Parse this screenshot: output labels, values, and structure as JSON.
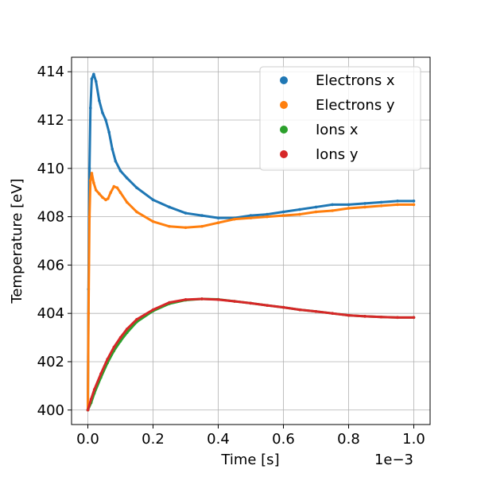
{
  "chart_data": {
    "type": "scatter",
    "xlabel": "Time [s]",
    "ylabel": "Temperature [eV]",
    "x_offset_label": "1e−3",
    "xlim": [
      -0.05,
      1.05
    ],
    "ylim": [
      399.4,
      414.6
    ],
    "x_ticks": [
      0.0,
      0.2,
      0.4,
      0.6,
      0.8,
      1.0
    ],
    "x_tick_labels": [
      "0.0",
      "0.2",
      "0.4",
      "0.6",
      "0.8",
      "1.0"
    ],
    "y_ticks": [
      400,
      402,
      404,
      406,
      408,
      410,
      412,
      414
    ],
    "y_tick_labels": [
      "400",
      "402",
      "404",
      "406",
      "408",
      "410",
      "412",
      "414"
    ],
    "grid": true,
    "legend_position": "top-right",
    "series": [
      {
        "name": "Electrons x",
        "color": "#1f77b4",
        "points": [
          [
            0,
            400
          ],
          [
            0.002,
            405
          ],
          [
            0.005,
            410
          ],
          [
            0.008,
            412.5
          ],
          [
            0.012,
            413.7
          ],
          [
            0.018,
            413.9
          ],
          [
            0.025,
            413.6
          ],
          [
            0.035,
            412.8
          ],
          [
            0.045,
            412.3
          ],
          [
            0.055,
            412
          ],
          [
            0.065,
            411.5
          ],
          [
            0.075,
            410.8
          ],
          [
            0.085,
            410.3
          ],
          [
            0.1,
            409.9
          ],
          [
            0.12,
            409.6
          ],
          [
            0.15,
            409.2
          ],
          [
            0.2,
            408.7
          ],
          [
            0.25,
            408.4
          ],
          [
            0.3,
            408.15
          ],
          [
            0.35,
            408.05
          ],
          [
            0.4,
            407.95
          ],
          [
            0.45,
            407.95
          ],
          [
            0.5,
            408.05
          ],
          [
            0.55,
            408.1
          ],
          [
            0.6,
            408.2
          ],
          [
            0.65,
            408.3
          ],
          [
            0.7,
            408.4
          ],
          [
            0.75,
            408.5
          ],
          [
            0.8,
            408.5
          ],
          [
            0.85,
            408.55
          ],
          [
            0.9,
            408.6
          ],
          [
            0.95,
            408.65
          ],
          [
            1.0,
            408.65
          ]
        ]
      },
      {
        "name": "Electrons y",
        "color": "#ff7f0e",
        "points": [
          [
            0,
            400
          ],
          [
            0.002,
            404
          ],
          [
            0.005,
            408
          ],
          [
            0.008,
            409.5
          ],
          [
            0.012,
            409.8
          ],
          [
            0.018,
            409.4
          ],
          [
            0.025,
            409.1
          ],
          [
            0.035,
            408.95
          ],
          [
            0.045,
            408.8
          ],
          [
            0.055,
            408.7
          ],
          [
            0.062,
            408.75
          ],
          [
            0.07,
            409
          ],
          [
            0.08,
            409.25
          ],
          [
            0.09,
            409.2
          ],
          [
            0.1,
            409
          ],
          [
            0.12,
            408.6
          ],
          [
            0.15,
            408.2
          ],
          [
            0.2,
            407.8
          ],
          [
            0.25,
            407.6
          ],
          [
            0.3,
            407.55
          ],
          [
            0.35,
            407.6
          ],
          [
            0.4,
            407.75
          ],
          [
            0.45,
            407.9
          ],
          [
            0.5,
            407.95
          ],
          [
            0.55,
            408
          ],
          [
            0.6,
            408.05
          ],
          [
            0.65,
            408.1
          ],
          [
            0.7,
            408.2
          ],
          [
            0.75,
            408.25
          ],
          [
            0.8,
            408.35
          ],
          [
            0.85,
            408.4
          ],
          [
            0.9,
            408.45
          ],
          [
            0.95,
            408.5
          ],
          [
            1.0,
            408.5
          ]
        ]
      },
      {
        "name": "Ions x",
        "color": "#2ca02c",
        "points": [
          [
            0,
            400
          ],
          [
            0.01,
            400.3
          ],
          [
            0.02,
            400.7
          ],
          [
            0.04,
            401.35
          ],
          [
            0.06,
            401.95
          ],
          [
            0.08,
            402.45
          ],
          [
            0.1,
            402.85
          ],
          [
            0.12,
            403.2
          ],
          [
            0.15,
            403.65
          ],
          [
            0.2,
            404.1
          ],
          [
            0.25,
            404.4
          ],
          [
            0.3,
            404.55
          ],
          [
            0.35,
            404.6
          ],
          [
            0.4,
            404.58
          ],
          [
            0.45,
            404.5
          ],
          [
            0.5,
            404.42
          ],
          [
            0.55,
            404.33
          ],
          [
            0.6,
            404.25
          ],
          [
            0.65,
            404.15
          ],
          [
            0.7,
            404.08
          ],
          [
            0.75,
            404
          ],
          [
            0.8,
            403.92
          ],
          [
            0.85,
            403.88
          ],
          [
            0.9,
            403.85
          ],
          [
            0.95,
            403.83
          ],
          [
            1.0,
            403.83
          ]
        ]
      },
      {
        "name": "Ions y",
        "color": "#d62728",
        "points": [
          [
            0,
            400
          ],
          [
            0.01,
            400.45
          ],
          [
            0.02,
            400.85
          ],
          [
            0.04,
            401.5
          ],
          [
            0.06,
            402.1
          ],
          [
            0.08,
            402.6
          ],
          [
            0.1,
            403
          ],
          [
            0.12,
            403.35
          ],
          [
            0.15,
            403.75
          ],
          [
            0.2,
            404.15
          ],
          [
            0.25,
            404.45
          ],
          [
            0.3,
            404.57
          ],
          [
            0.35,
            404.6
          ],
          [
            0.4,
            404.57
          ],
          [
            0.45,
            404.5
          ],
          [
            0.5,
            404.42
          ],
          [
            0.55,
            404.33
          ],
          [
            0.6,
            404.25
          ],
          [
            0.65,
            404.15
          ],
          [
            0.7,
            404.08
          ],
          [
            0.75,
            404
          ],
          [
            0.8,
            403.92
          ],
          [
            0.85,
            403.88
          ],
          [
            0.9,
            403.85
          ],
          [
            0.95,
            403.83
          ],
          [
            1.0,
            403.83
          ]
        ]
      }
    ]
  }
}
